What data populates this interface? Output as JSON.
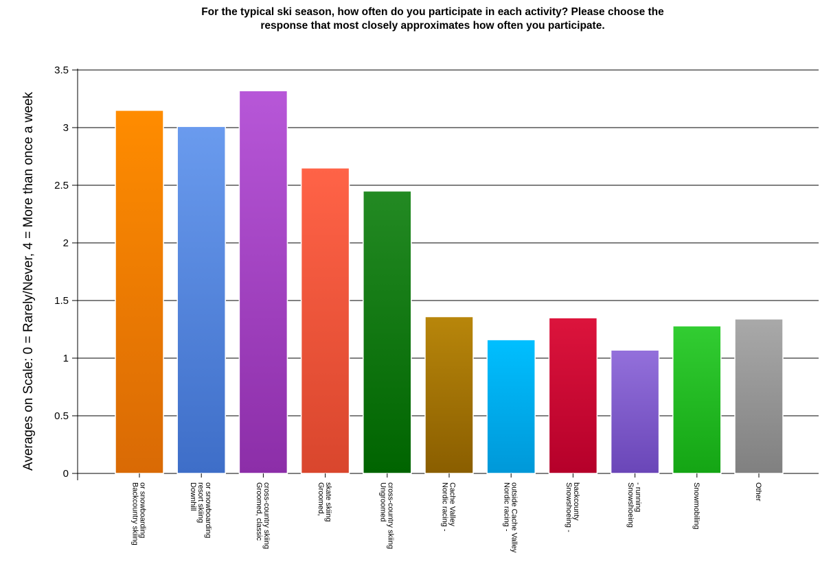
{
  "chart_data": {
    "type": "bar",
    "title_line1": "For the typical ski season, how often do you participate in each activity? Please choose the",
    "title_line2": "response that most closely approximates how often you participate.",
    "ylabel": "Averages on Scale: 0 = Rarely/Never, 4 = More than once a week",
    "xlabel": "",
    "ylim": [
      0,
      3.5
    ],
    "yticks": [
      "0",
      "0.5",
      "1",
      "1.5",
      "2",
      "2.5",
      "3",
      "3.5"
    ],
    "grid": true,
    "categories": [
      [
        "Backcountry skiing",
        "or snowboarding"
      ],
      [
        "Downhill",
        "resort skiing",
        "or snowboarding"
      ],
      [
        "Groomed, classic",
        "cross-country skiing"
      ],
      [
        "Groomed,",
        "skate skiing"
      ],
      [
        "Ungroomed",
        "cross-country skiing"
      ],
      [
        "Nordic racing -",
        "Cache Valley"
      ],
      [
        "Nordic racing -",
        "outside Cache Valley"
      ],
      [
        "Snowshoeing -",
        "backcounty"
      ],
      [
        "Snowshoeing",
        "- running"
      ],
      [
        "Snowmobiling"
      ],
      [
        "Other"
      ]
    ],
    "values": [
      3.15,
      3.01,
      3.32,
      2.65,
      2.45,
      1.36,
      1.16,
      1.35,
      1.07,
      1.28,
      1.34
    ],
    "colors": [
      [
        "#ff8c00",
        "#d96a05"
      ],
      [
        "#6a9bee",
        "#3e6ec8"
      ],
      [
        "#b757d8",
        "#8c2ea8"
      ],
      [
        "#ff6347",
        "#d9462d"
      ],
      [
        "#238a23",
        "#006400"
      ],
      [
        "#b8860b",
        "#8a5e00"
      ],
      [
        "#00bfff",
        "#0098d8"
      ],
      [
        "#dc143c",
        "#b5002a"
      ],
      [
        "#9370db",
        "#6a46b8"
      ],
      [
        "#32cd32",
        "#14a514"
      ],
      [
        "#a9a9a9",
        "#808080"
      ]
    ]
  }
}
